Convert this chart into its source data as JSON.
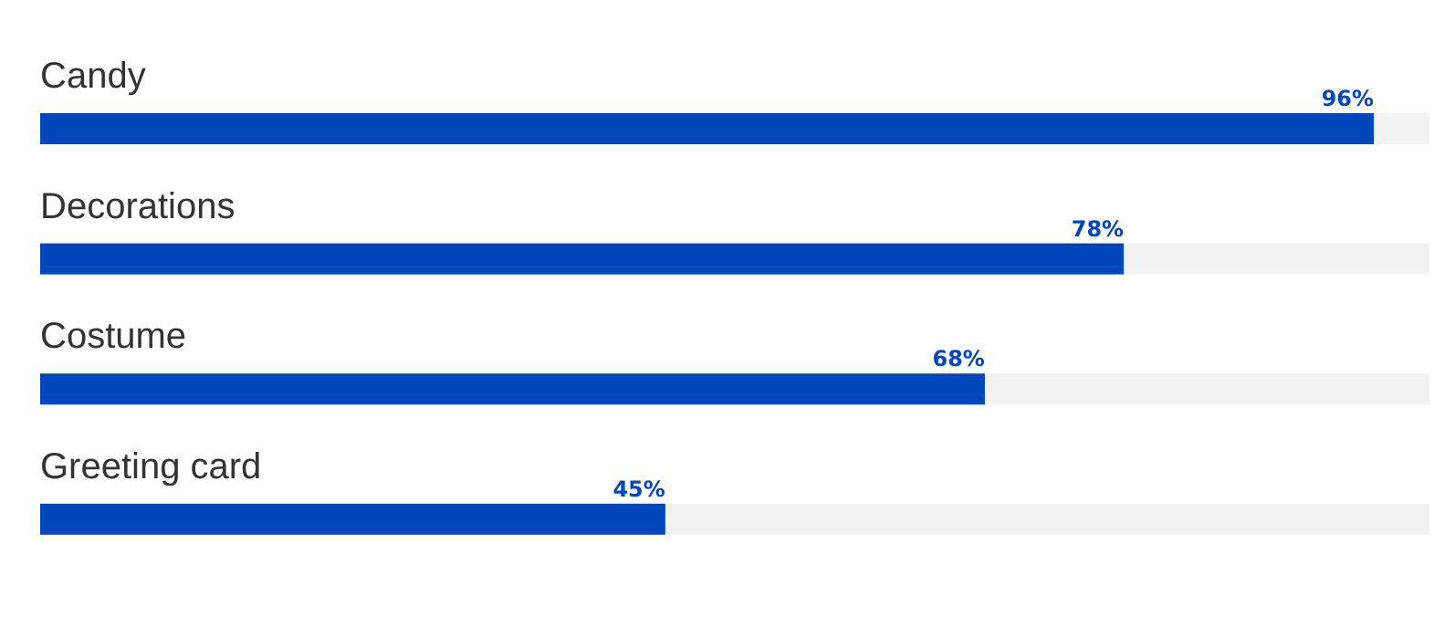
{
  "chart_data": {
    "type": "bar",
    "orientation": "horizontal",
    "categories": [
      "Candy",
      "Decorations",
      "Costume",
      "Greeting card"
    ],
    "values": [
      96,
      78,
      68,
      45
    ],
    "color": "#0047bb",
    "xlim": [
      0,
      100
    ],
    "tick_labels": false,
    "data_labels": true,
    "value_labels": [
      "96%",
      "78%",
      "68%",
      "45%"
    ]
  }
}
